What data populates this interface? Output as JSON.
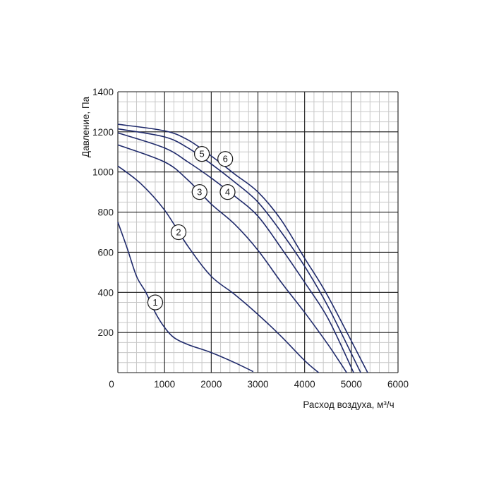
{
  "chart_data": {
    "type": "line",
    "title": "",
    "xlabel": "Расход воздуха, м³/ч",
    "ylabel": "Давление, Па",
    "xlim": [
      0,
      6000
    ],
    "ylim": [
      0,
      1400
    ],
    "x_ticks": [
      "0",
      "1000",
      "2000",
      "3000",
      "4000",
      "5000",
      "6000"
    ],
    "y_ticks": [
      "200",
      "400",
      "600",
      "800",
      "1000",
      "1200",
      "1400"
    ],
    "grid": true,
    "minor_grid": true,
    "line_color": "#1f2a6b",
    "grid_color": "#1a1a1a",
    "minor_grid_color": "#c8c8c8",
    "series": [
      {
        "name": "1",
        "x": [
          0,
          200,
          400,
          600,
          800,
          1000,
          1200,
          1500,
          2000,
          2500,
          2900
        ],
        "y": [
          750,
          620,
          480,
          400,
          300,
          225,
          175,
          140,
          100,
          50,
          5
        ]
      },
      {
        "name": "2",
        "x": [
          0,
          500,
          1000,
          1500,
          2000,
          2500,
          3000,
          3500,
          4000,
          4300
        ],
        "y": [
          1030,
          940,
          810,
          630,
          480,
          390,
          290,
          180,
          60,
          0
        ]
      },
      {
        "name": "3",
        "x": [
          0,
          1000,
          1500,
          2000,
          2500,
          3000,
          3500,
          4000,
          4500,
          4900
        ],
        "y": [
          1135,
          1050,
          960,
          840,
          740,
          610,
          450,
          300,
          140,
          0
        ]
      },
      {
        "name": "4",
        "x": [
          0,
          1000,
          1500,
          2000,
          2500,
          3000,
          3500,
          4000,
          4500,
          5050
        ],
        "y": [
          1195,
          1120,
          1050,
          970,
          880,
          780,
          620,
          450,
          270,
          0
        ]
      },
      {
        "name": "5",
        "x": [
          0,
          1000,
          1500,
          2000,
          2500,
          3000,
          3500,
          4000,
          4500,
          5200
        ],
        "y": [
          1215,
          1175,
          1120,
          1040,
          950,
          850,
          700,
          530,
          330,
          0
        ]
      },
      {
        "name": "6",
        "x": [
          0,
          1000,
          1500,
          2000,
          2500,
          3000,
          3500,
          4000,
          4500,
          5350
        ],
        "y": [
          1238,
          1205,
          1160,
          1080,
          990,
          900,
          760,
          570,
          380,
          0
        ]
      }
    ],
    "markers": [
      {
        "label": "1",
        "x": 800,
        "y": 350
      },
      {
        "label": "2",
        "x": 1300,
        "y": 700
      },
      {
        "label": "3",
        "x": 1750,
        "y": 900
      },
      {
        "label": "4",
        "x": 2350,
        "y": 900
      },
      {
        "label": "5",
        "x": 1800,
        "y": 1090
      },
      {
        "label": "6",
        "x": 2300,
        "y": 1065
      }
    ]
  }
}
